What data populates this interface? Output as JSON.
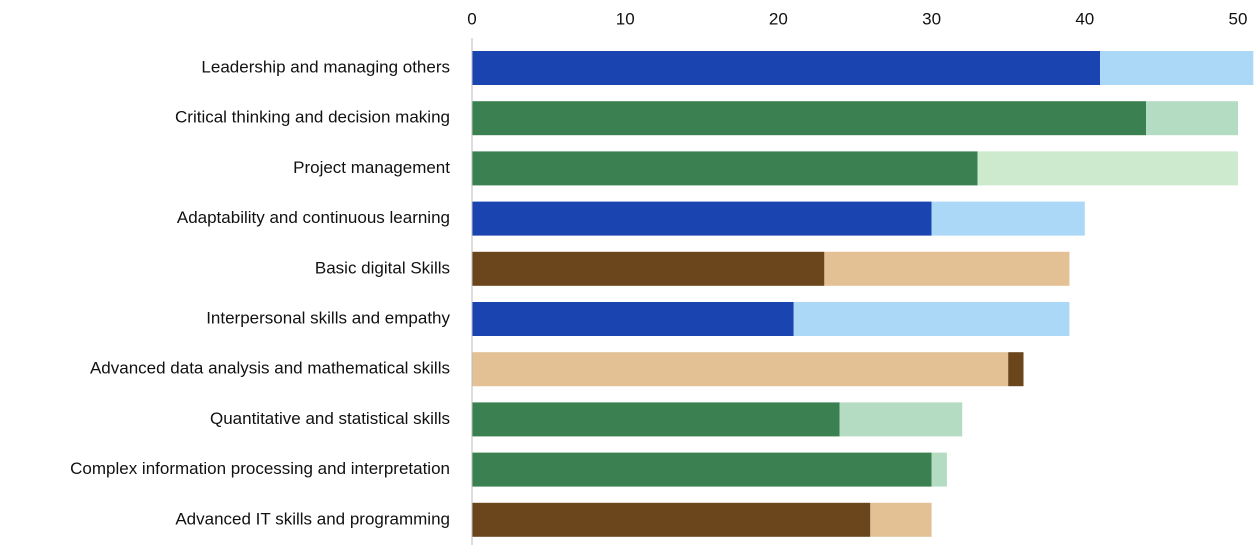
{
  "chart_data": {
    "type": "stacked-barh",
    "categories": [
      "Leadership and managing others",
      "Critical thinking and decision making",
      "Project management",
      "Adaptability and continuous learning",
      "Basic digital Skills",
      "Interpersonal skills and empathy",
      "Advanced data analysis and mathematical skills",
      "Quantitative and statistical skills",
      "Complex information processing and interpretation",
      "Advanced IT skills and programming"
    ],
    "series": [
      {
        "values": [
          41,
          44,
          33,
          30,
          23,
          21,
          35,
          24,
          30,
          26
        ],
        "colors": [
          "#1a44b0",
          "#3a8050",
          "#3a8050",
          "#1a44b0",
          "#6b451c",
          "#1a44b0",
          "#e3c195",
          "#3a8050",
          "#3a8050",
          "#6b451c"
        ]
      },
      {
        "values": [
          10,
          6,
          17,
          10,
          16,
          18,
          1,
          8,
          1,
          4
        ],
        "colors": [
          "#acd8f8",
          "#b3dcc2",
          "#cdeacf",
          "#acd8f8",
          "#e3c195",
          "#acd8f8",
          "#6b451c",
          "#b3dcc2",
          "#b3dcc2",
          "#e3c195"
        ]
      }
    ],
    "xlim": [
      0,
      51
    ],
    "xticks": [
      0,
      10,
      20,
      30,
      40,
      50
    ],
    "grid": false
  }
}
